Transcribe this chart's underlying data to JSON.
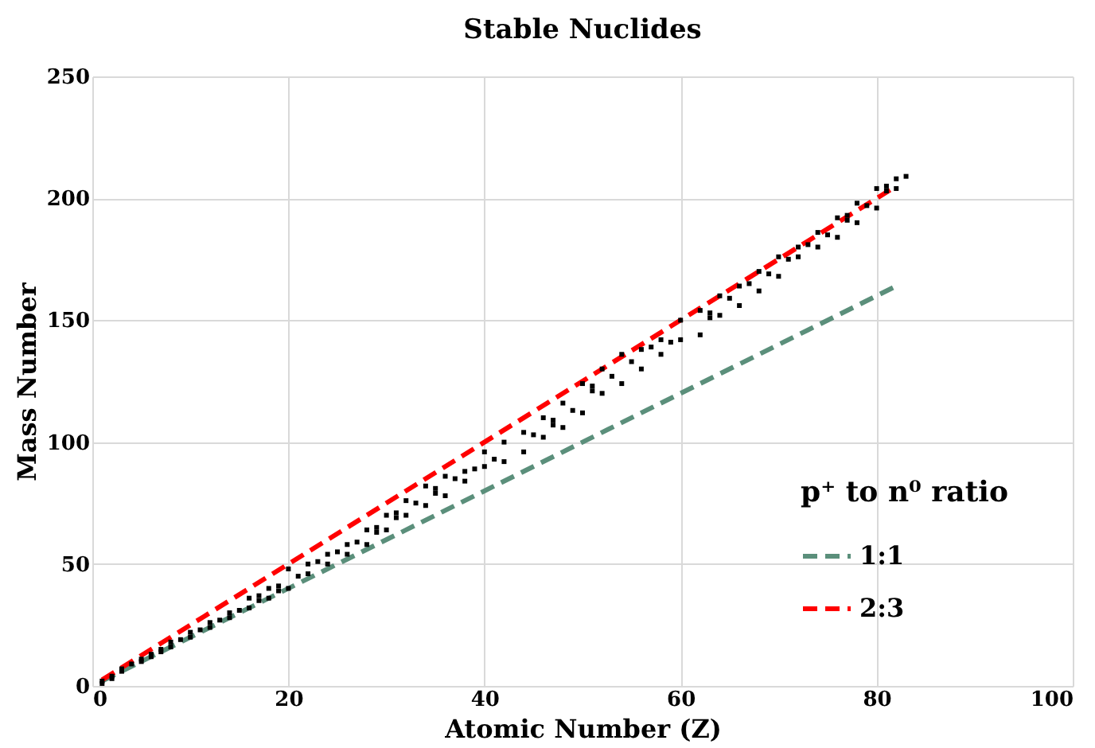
{
  "chart_data": {
    "type": "scatter",
    "title": "Stable Nuclides",
    "xlabel": "Atomic Number (Z)",
    "ylabel": "Mass Number",
    "legend_title": "p⁺ to n⁰ ratio",
    "xlim": [
      0,
      100
    ],
    "xticks": [
      0,
      20,
      40,
      60,
      80,
      100
    ],
    "ylim": [
      0,
      250
    ],
    "yticks": [
      0,
      50,
      100,
      150,
      200,
      250
    ],
    "grid": true,
    "legend": "bottom right",
    "series": [
      {
        "marker": "square",
        "color": "#000000",
        "x": [
          1,
          1,
          2,
          2,
          3,
          3,
          4,
          5,
          5,
          6,
          6,
          7,
          7,
          8,
          8,
          9,
          10,
          10,
          11,
          12,
          12,
          13,
          14,
          14,
          15,
          16,
          16,
          17,
          17,
          18,
          18,
          19,
          19,
          20,
          20,
          21,
          22,
          22,
          23,
          24,
          24,
          25,
          26,
          26,
          27,
          28,
          28,
          29,
          29,
          30,
          30,
          31,
          31,
          32,
          32,
          33,
          34,
          34,
          35,
          35,
          36,
          36,
          37,
          38,
          38,
          39,
          40,
          40,
          41,
          42,
          42,
          44,
          44,
          45,
          46,
          46,
          47,
          47,
          48,
          48,
          49,
          50,
          50,
          51,
          51,
          52,
          52,
          53,
          54,
          54,
          55,
          56,
          56,
          57,
          58,
          58,
          59,
          60,
          60,
          62,
          62,
          63,
          63,
          64,
          64,
          65,
          66,
          66,
          67,
          68,
          68,
          69,
          70,
          70,
          71,
          72,
          72,
          73,
          74,
          74,
          75,
          76,
          76,
          77,
          77,
          78,
          78,
          79,
          80,
          80,
          81,
          81,
          82,
          82,
          83
        ],
        "values": [
          1,
          2,
          3,
          4,
          6,
          7,
          9,
          10,
          11,
          12,
          13,
          14,
          15,
          16,
          18,
          19,
          20,
          22,
          23,
          24,
          26,
          27,
          28,
          30,
          31,
          32,
          36,
          35,
          37,
          36,
          40,
          39,
          41,
          40,
          48,
          45,
          46,
          50,
          51,
          50,
          54,
          55,
          54,
          58,
          59,
          58,
          64,
          63,
          65,
          64,
          70,
          69,
          71,
          70,
          76,
          75,
          74,
          82,
          79,
          81,
          78,
          86,
          85,
          84,
          88,
          89,
          90,
          96,
          93,
          92,
          100,
          96,
          104,
          103,
          102,
          110,
          107,
          109,
          106,
          116,
          113,
          112,
          124,
          121,
          123,
          120,
          130,
          127,
          124,
          136,
          133,
          130,
          138,
          139,
          136,
          142,
          141,
          142,
          150,
          144,
          154,
          151,
          153,
          152,
          160,
          159,
          156,
          164,
          165,
          162,
          170,
          169,
          168,
          176,
          175,
          176,
          180,
          181,
          180,
          186,
          185,
          184,
          192,
          191,
          193,
          190,
          198,
          197,
          196,
          204,
          203,
          205,
          204,
          208,
          209
        ]
      },
      {
        "type": "line",
        "name": "1:1",
        "color": "#5b8f7b",
        "line_style": "dashed",
        "x": [
          1,
          82
        ],
        "values": [
          2,
          164
        ]
      },
      {
        "type": "line",
        "name": "2:3",
        "color": "#ff0000",
        "line_style": "dashed",
        "x": [
          1,
          82
        ],
        "values": [
          2.5,
          205
        ]
      }
    ]
  }
}
